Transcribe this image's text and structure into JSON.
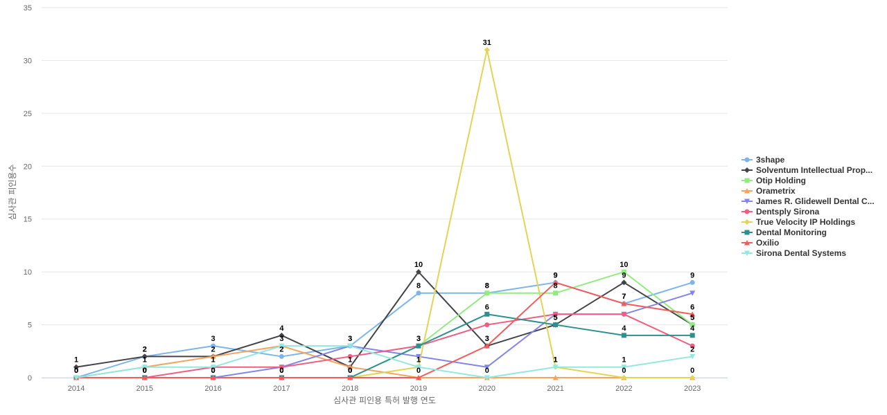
{
  "chart_data": {
    "type": "line",
    "xlabel": "심사관 피인용 특허 발행 연도",
    "ylabel": "심사관 피인용수",
    "ylim": [
      0,
      35
    ],
    "yticks": [
      0,
      5,
      10,
      15,
      20,
      25,
      30,
      35
    ],
    "x": [
      "2014",
      "2015",
      "2016",
      "2017",
      "2018",
      "2019",
      "2020",
      "2021",
      "2022",
      "2023"
    ],
    "grid": true,
    "legend_position": "right",
    "series": [
      {
        "name": "3shape",
        "color": "#7cb5ec",
        "marker": "circle",
        "values": [
          0,
          2,
          3,
          2,
          3,
          8,
          8,
          9,
          7,
          9
        ]
      },
      {
        "name": "Solventum Intellectual Prop...",
        "color": "#434348",
        "marker": "diamond",
        "values": [
          1,
          2,
          2,
          4,
          1,
          10,
          3,
          5,
          9,
          5
        ]
      },
      {
        "name": "Otip Holding",
        "color": "#90ed7d",
        "marker": "square",
        "values": [
          0,
          0,
          0,
          0,
          0,
          3,
          8,
          8,
          10,
          5
        ]
      },
      {
        "name": "Orametrix",
        "color": "#f7a35c",
        "marker": "triangle",
        "values": [
          0,
          1,
          2,
          3,
          1,
          0,
          0,
          0,
          0,
          0
        ]
      },
      {
        "name": "James R. Glidewell Dental C...",
        "color": "#8085e9",
        "marker": "triangle-down",
        "values": [
          0,
          0,
          0,
          1,
          3,
          2,
          1,
          6,
          6,
          8
        ]
      },
      {
        "name": "Dentsply Sirona",
        "color": "#f15c80",
        "marker": "circle",
        "values": [
          0,
          0,
          1,
          1,
          2,
          3,
          5,
          6,
          6,
          3
        ]
      },
      {
        "name": "True Velocity IP Holdings",
        "color": "#e4d354",
        "marker": "diamond",
        "values": [
          0,
          0,
          0,
          0,
          0,
          1,
          31,
          1,
          0,
          0
        ]
      },
      {
        "name": "Dental Monitoring",
        "color": "#2b908f",
        "marker": "square",
        "values": [
          0,
          0,
          0,
          0,
          0,
          3,
          6,
          5,
          4,
          4
        ]
      },
      {
        "name": "Oxilio",
        "color": "#f45b5b",
        "marker": "triangle",
        "values": [
          0,
          0,
          0,
          0,
          0,
          0,
          3,
          9,
          7,
          6
        ]
      },
      {
        "name": "Sirona Dental Systems",
        "color": "#91e8e1",
        "marker": "triangle-down",
        "values": [
          0,
          1,
          1,
          3,
          3,
          1,
          0,
          1,
          1,
          2
        ]
      }
    ],
    "labeled_series": [
      "3shape",
      "Solventum Intellectual Prop...",
      "Otip Holding",
      "True Velocity IP Holdings",
      "Dental Monitoring",
      "Oxilio",
      "Sirona Dental Systems"
    ]
  }
}
